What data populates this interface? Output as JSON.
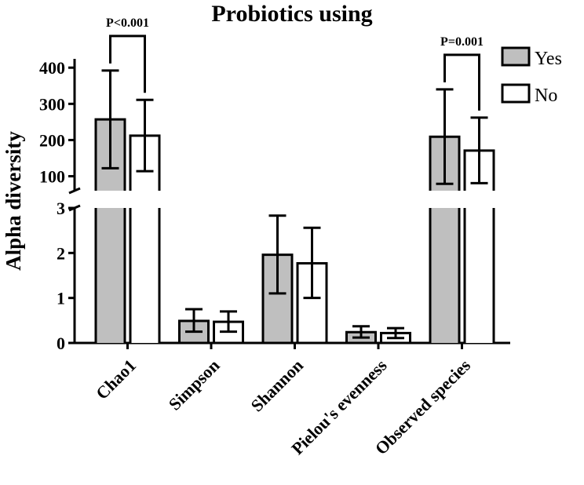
{
  "chart_data": {
    "type": "bar",
    "title": "Probiotics using",
    "ylabel": "Alpha diversity",
    "xlabel": "",
    "categories": [
      "Chao1",
      "Simpson",
      "Shannon",
      "Pielou's evenness",
      "Observed species"
    ],
    "series": [
      {
        "name": "Yes",
        "color": "#bfbfbf",
        "values": [
          257,
          0.49,
          1.96,
          0.24,
          209
        ],
        "err_low": [
          122,
          0.25,
          1.1,
          0.12,
          79
        ],
        "err_high": [
          392,
          0.75,
          2.83,
          0.37,
          340
        ]
      },
      {
        "name": "No",
        "color": "#ffffff",
        "values": [
          212,
          0.47,
          1.77,
          0.22,
          171
        ],
        "err_low": [
          114,
          0.25,
          1.0,
          0.11,
          81
        ],
        "err_high": [
          311,
          0.7,
          2.56,
          0.33,
          262
        ]
      }
    ],
    "axis_broken": true,
    "upper_segment": {
      "ylim": [
        60,
        420
      ],
      "ticks": [
        "100",
        "200",
        "300",
        "400"
      ]
    },
    "lower_segment": {
      "ylim": [
        0,
        3
      ],
      "ticks": [
        "0",
        "1",
        "2",
        "3"
      ]
    },
    "annotations": [
      {
        "text": "P<0.001",
        "category": "Chao1"
      },
      {
        "text": "P=0.001",
        "category": "Observed species"
      }
    ],
    "legend_position": "top-right",
    "grid": false
  }
}
